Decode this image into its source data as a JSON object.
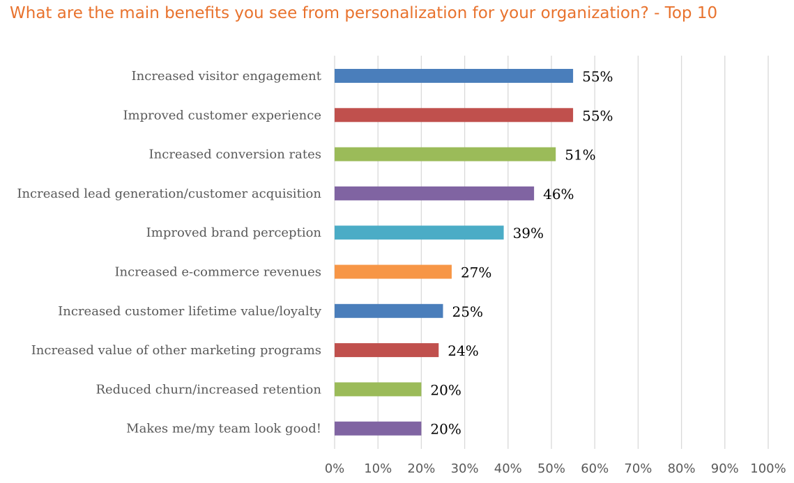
{
  "chart_data": {
    "type": "bar",
    "orientation": "horizontal",
    "title": "What are the main benefits you see from personalization for your organization? - Top 10",
    "categories": [
      "Increased visitor engagement",
      "Improved customer experience",
      "Increased conversion rates",
      "Increased lead generation/customer acquisition",
      "Improved brand perception",
      "Increased e-commerce revenues",
      "Increased customer lifetime value/loyalty",
      "Increased value of other marketing programs",
      "Reduced churn/increased retention",
      "Makes me/my team look good!"
    ],
    "values": [
      55,
      55,
      51,
      46,
      39,
      27,
      25,
      24,
      20,
      20
    ],
    "value_labels": [
      "55%",
      "55%",
      "51%",
      "46%",
      "39%",
      "27%",
      "25%",
      "24%",
      "20%",
      "20%"
    ],
    "bar_colors": [
      "#4a7ebb",
      "#c0504d",
      "#9bbb59",
      "#8064a2",
      "#4bacc6",
      "#f79646",
      "#4a7ebb",
      "#c0504d",
      "#9bbb59",
      "#8064a2"
    ],
    "xlim": [
      0,
      100
    ],
    "xticks": [
      0,
      10,
      20,
      30,
      40,
      50,
      60,
      70,
      80,
      90,
      100
    ],
    "xtick_labels": [
      "0%",
      "10%",
      "20%",
      "30%",
      "40%",
      "50%",
      "60%",
      "70%",
      "80%",
      "90%",
      "100%"
    ],
    "xlabel": "",
    "ylabel": "",
    "grid": "vertical",
    "legend": "none"
  },
  "colors": {
    "title": "#e8722d",
    "gridline": "#d9d9d9",
    "category_text": "#595959",
    "value_text": "#000000"
  }
}
